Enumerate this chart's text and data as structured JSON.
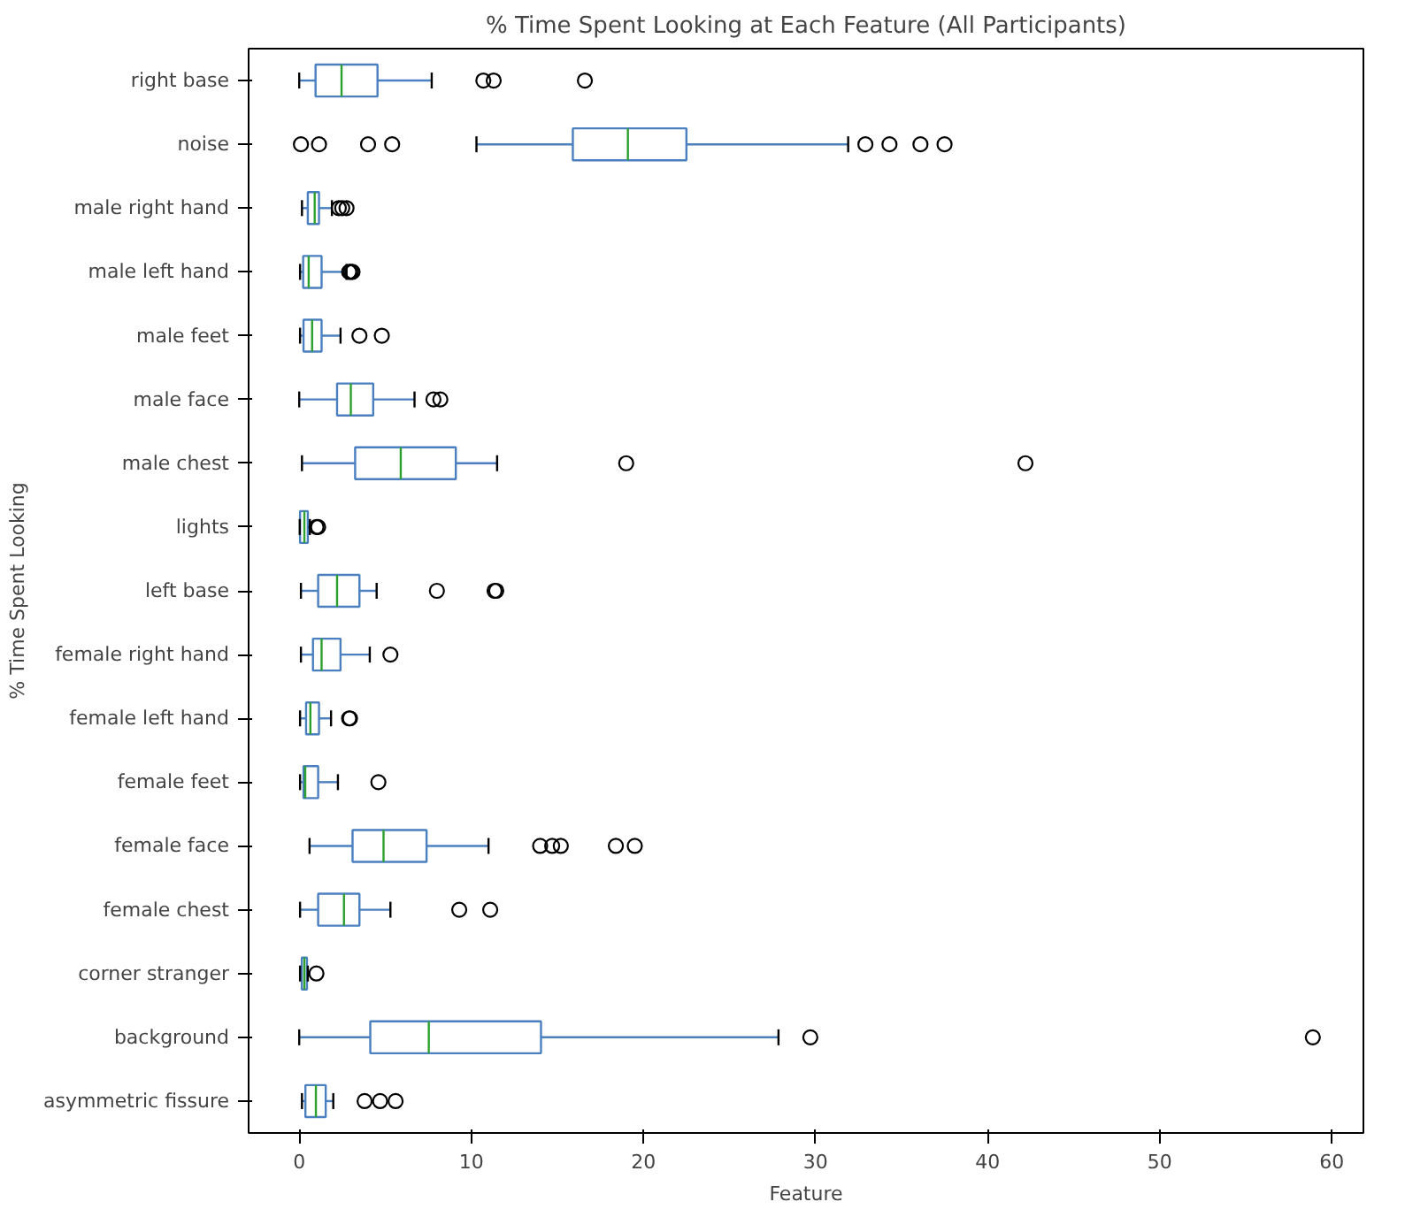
{
  "chart_data": {
    "type": "box",
    "orientation": "horizontal",
    "title": "% Time Spent Looking at Each Feature (All Participants)",
    "xlabel": "Feature",
    "ylabel": "% Time Spent Looking",
    "categories": [
      "right base",
      "noise",
      "male right hand",
      "male left hand",
      "male feet",
      "male face",
      "male chest",
      "lights",
      "left base",
      "female right hand",
      "female left hand",
      "female feet",
      "female face",
      "female chest",
      "corner stranger",
      "background",
      "asymmetric fissure"
    ],
    "xlim": [
      -2.94,
      61.84
    ],
    "xticks": [
      0,
      10,
      20,
      30,
      40,
      50,
      60
    ],
    "grid": false,
    "series": [
      {
        "color": "#4a7fc0",
        "boxes": [
          {
            "low": 0.0,
            "q1": 0.95,
            "median": 2.46,
            "q3": 4.55,
            "high": 7.7,
            "outliers": [
              10.7,
              11.3,
              16.6
            ]
          },
          {
            "low": 10.3,
            "q1": 15.9,
            "median": 19.1,
            "q3": 22.5,
            "high": 31.9,
            "outliers": [
              0.1,
              1.15,
              4.0,
              5.4,
              32.9,
              34.3,
              36.1,
              37.5
            ]
          },
          {
            "low": 0.16,
            "q1": 0.5,
            "median": 0.9,
            "q3": 1.15,
            "high": 1.9,
            "outliers": [
              2.3,
              2.5,
              2.75
            ]
          },
          {
            "low": 0.05,
            "q1": 0.23,
            "median": 0.55,
            "q3": 1.3,
            "high": 2.75,
            "outliers": [
              2.9,
              3.0,
              3.1
            ]
          },
          {
            "low": 0.05,
            "q1": 0.25,
            "median": 0.75,
            "q3": 1.3,
            "high": 2.4,
            "outliers": [
              3.5,
              4.8
            ]
          },
          {
            "low": 0.0,
            "q1": 2.2,
            "median": 3.0,
            "q3": 4.3,
            "high": 6.7,
            "outliers": [
              7.8,
              8.2
            ]
          },
          {
            "low": 0.16,
            "q1": 3.25,
            "median": 5.9,
            "q3": 9.1,
            "high": 11.5,
            "outliers": [
              19.0,
              42.2
            ]
          },
          {
            "low": 0.03,
            "q1": 0.05,
            "median": 0.3,
            "q3": 0.5,
            "high": 0.62,
            "outliers": [
              1.0,
              1.1
            ]
          },
          {
            "low": 0.1,
            "q1": 1.1,
            "median": 2.2,
            "q3": 3.5,
            "high": 4.5,
            "outliers": [
              8.0,
              11.35,
              11.45
            ]
          },
          {
            "low": 0.1,
            "q1": 0.8,
            "median": 1.3,
            "q3": 2.4,
            "high": 4.1,
            "outliers": [
              5.3
            ]
          },
          {
            "low": 0.05,
            "q1": 0.4,
            "median": 0.65,
            "q3": 1.15,
            "high": 1.85,
            "outliers": [
              2.9,
              2.95
            ]
          },
          {
            "low": 0.05,
            "q1": 0.25,
            "median": 0.35,
            "q3": 1.1,
            "high": 2.25,
            "outliers": [
              4.6
            ]
          },
          {
            "low": 0.6,
            "q1": 3.1,
            "median": 4.9,
            "q3": 7.4,
            "high": 11.0,
            "outliers": [
              14.0,
              14.7,
              15.2,
              18.4,
              19.5
            ]
          },
          {
            "low": 0.05,
            "q1": 1.1,
            "median": 2.6,
            "q3": 3.5,
            "high": 5.3,
            "outliers": [
              9.3,
              11.1
            ]
          },
          {
            "low": 0.05,
            "q1": 0.15,
            "median": 0.3,
            "q3": 0.45,
            "high": 0.5,
            "outliers": [
              1.0
            ]
          },
          {
            "low": 0.0,
            "q1": 4.13,
            "median": 7.53,
            "q3": 14.05,
            "high": 27.85,
            "outliers": [
              29.7,
              58.9
            ]
          },
          {
            "low": 0.16,
            "q1": 0.36,
            "median": 0.97,
            "q3": 1.54,
            "high": 1.98,
            "outliers": [
              3.8,
              4.7,
              5.6
            ]
          }
        ]
      }
    ]
  }
}
